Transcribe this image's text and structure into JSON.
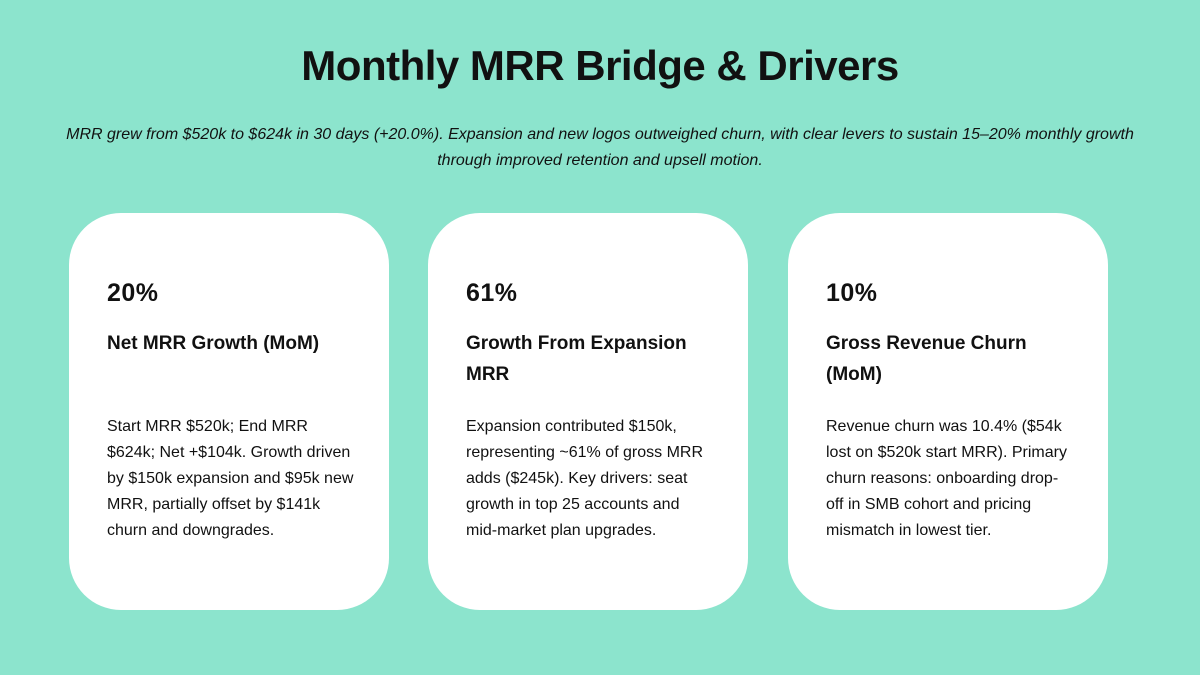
{
  "header": {
    "title": "Monthly MRR Bridge & Drivers",
    "subtitle": "MRR grew from $520k to $624k in 30 days (+20.0%). Expansion and new logos outweighed churn, with clear levers to sustain 15–20% monthly growth through improved retention and upsell motion."
  },
  "cards": [
    {
      "metric": "20%",
      "label": "Net MRR Growth (MoM)",
      "body": "Start MRR $520k; End MRR $624k; Net +$104k. Growth driven by $150k expansion and $95k new MRR, partially offset by $141k churn and downgrades."
    },
    {
      "metric": "61%",
      "label": "Growth From Expansion MRR",
      "body": "Expansion contributed $150k, representing ~61% of gross MRR adds ($245k). Key drivers: seat growth in top 25 accounts and mid-market plan upgrades."
    },
    {
      "metric": "10%",
      "label": "Gross Revenue Churn (MoM)",
      "body": "Revenue churn was 10.4% ($54k lost on $520k start MRR). Primary churn reasons: onboarding drop-off in SMB cohort and pricing mismatch in lowest tier."
    }
  ]
}
